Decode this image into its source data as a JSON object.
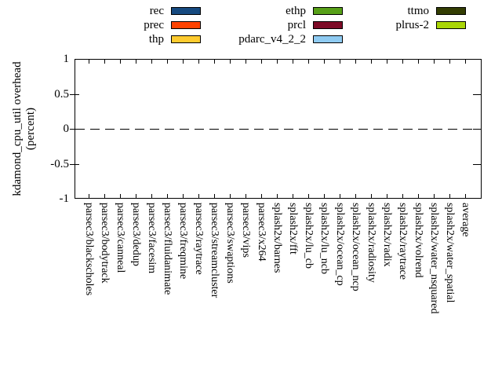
{
  "y_axis": {
    "title_line1": "kdamond_cpu_util overhead",
    "title_line2": "(percent)",
    "tick_labels": [
      "1",
      "0.5",
      "0",
      "-0.5",
      "-1"
    ]
  },
  "chart_data": {
    "type": "bar",
    "title": "",
    "xlabel": "",
    "ylabel": "kdamond_cpu_util overhead (percent)",
    "ylim": [
      -1,
      1
    ],
    "yticks": [
      1,
      0.5,
      0,
      -0.5,
      -1
    ],
    "grid": false,
    "zero_line": "dashed",
    "legend_position": "top, 3 columns above plot",
    "categories": [
      "parsec3/blackscholes",
      "parsec3/bodytrack",
      "parsec3/canneal",
      "parsec3/dedup",
      "parsec3/facesim",
      "parsec3/fluidanimate",
      "parsec3/freqmine",
      "parsec3/raytrace",
      "parsec3/streamcluster",
      "parsec3/swaptions",
      "parsec3/vips",
      "parsec3/x264",
      "splash2x/barnes",
      "splash2x/fft",
      "splash2x/lu_cb",
      "splash2x/lu_ncb",
      "splash2x/ocean_cp",
      "splash2x/ocean_ncp",
      "splash2x/radiosity",
      "splash2x/radix",
      "splash2x/raytrace",
      "splash2x/volrend",
      "splash2x/water_nsquared",
      "splash2x/water_spatial",
      "average"
    ],
    "series": [
      {
        "name": "rec",
        "color": "#164a80",
        "values": [
          0,
          0,
          0,
          0,
          0,
          0,
          0,
          0,
          0,
          0,
          0,
          0,
          0,
          0,
          0,
          0,
          0,
          0,
          0,
          0,
          0,
          0,
          0,
          0,
          0
        ]
      },
      {
        "name": "prec",
        "color": "#ff4300",
        "values": [
          0,
          0,
          0,
          0,
          0,
          0,
          0,
          0,
          0,
          0,
          0,
          0,
          0,
          0,
          0,
          0,
          0,
          0,
          0,
          0,
          0,
          0,
          0,
          0,
          0
        ]
      },
      {
        "name": "thp",
        "color": "#fecb2f",
        "values": [
          0,
          0,
          0,
          0,
          0,
          0,
          0,
          0,
          0,
          0,
          0,
          0,
          0,
          0,
          0,
          0,
          0,
          0,
          0,
          0,
          0,
          0,
          0,
          0,
          0
        ]
      },
      {
        "name": "ethp",
        "color": "#57a018",
        "values": [
          0,
          0,
          0,
          0,
          0,
          0,
          0,
          0,
          0,
          0,
          0,
          0,
          0,
          0,
          0,
          0,
          0,
          0,
          0,
          0,
          0,
          0,
          0,
          0,
          0
        ]
      },
      {
        "name": "prcl",
        "color": "#7d0a26",
        "values": [
          0,
          0,
          0,
          0,
          0,
          0,
          0,
          0,
          0,
          0,
          0,
          0,
          0,
          0,
          0,
          0,
          0,
          0,
          0,
          0,
          0,
          0,
          0,
          0,
          0
        ]
      },
      {
        "name": "pdarc_v4_2_2",
        "color": "#8fcbf2",
        "values": [
          0,
          0,
          0,
          0,
          0,
          0,
          0,
          0,
          0,
          0,
          0,
          0,
          0,
          0,
          0,
          0,
          0,
          0,
          0,
          0,
          0,
          0,
          0,
          0,
          0
        ]
      },
      {
        "name": "ttmo",
        "color": "#333d03",
        "values": [
          0,
          0,
          0,
          0,
          0,
          0,
          0,
          0,
          0,
          0,
          0,
          0,
          0,
          0,
          0,
          0,
          0,
          0,
          0,
          0,
          0,
          0,
          0,
          0,
          0
        ]
      },
      {
        "name": "plrus-2",
        "color": "#a9d506",
        "values": [
          0,
          0,
          0,
          0,
          0,
          0,
          0,
          0,
          0,
          0,
          0,
          0,
          0,
          0,
          0,
          0,
          0,
          0,
          0,
          0,
          0,
          0,
          0,
          0,
          0
        ]
      }
    ]
  }
}
